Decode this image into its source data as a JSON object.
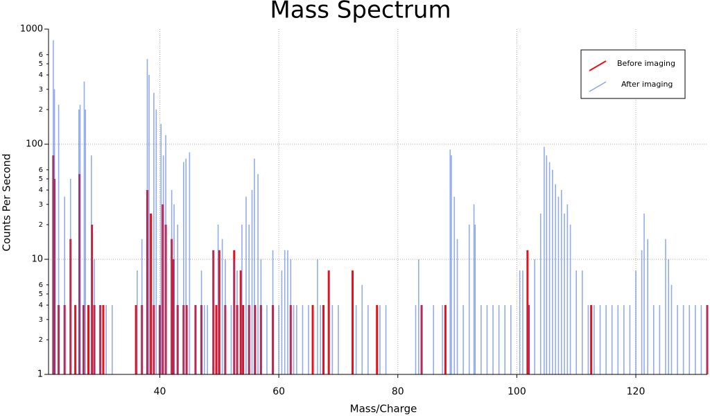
{
  "chart_data": {
    "type": "spectrum",
    "title": "Mass Spectrum",
    "x_label": "Mass/Charge",
    "y_label": "Counts Per Second",
    "log_y": true,
    "grid": true,
    "legend": "upper right",
    "xlim": [
      21.3,
      132
    ],
    "ylim": [
      1,
      1000
    ],
    "xticks": [
      40,
      60,
      80,
      100,
      120
    ],
    "yticks": [
      1,
      2,
      3,
      4,
      5,
      6,
      10,
      {
        "value": 20,
        "label": "2"
      },
      {
        "value": 30,
        "label": "3"
      },
      {
        "value": 40,
        "label": "4"
      },
      {
        "value": 50,
        "label": "5"
      },
      {
        "value": 60,
        "label": "6"
      },
      100,
      {
        "value": 200,
        "label": "2"
      },
      {
        "value": 300,
        "label": "3"
      },
      {
        "value": 400,
        "label": "4"
      },
      {
        "value": 500,
        "label": "5"
      },
      {
        "value": 600,
        "label": "6"
      },
      1000
    ],
    "series": [
      {
        "name": "Before imaging",
        "color": "#e8101a",
        "x": [
          22.1,
          22.3,
          23,
          24,
          25,
          25.8,
          26.5,
          27.2,
          28,
          28.6,
          29,
          30,
          30.5,
          36,
          37,
          37.9,
          38.5,
          39,
          40,
          40.5,
          41,
          42,
          42.3,
          43,
          44,
          44.5,
          46,
          47,
          49,
          49.5,
          50,
          51,
          52.5,
          53,
          53.6,
          54,
          55,
          56,
          57,
          59,
          62,
          65.7,
          67.5,
          68.4,
          72.4,
          76.5,
          84,
          88,
          101.8,
          102,
          112.5,
          132
        ],
        "values": [
          80,
          50,
          4,
          4,
          15,
          4,
          55,
          4,
          4,
          20,
          4,
          4,
          4,
          4,
          4,
          40,
          25,
          4,
          4,
          30,
          20,
          15,
          10,
          4,
          4,
          4,
          4,
          4,
          12,
          4,
          12,
          4,
          12,
          4,
          8,
          4,
          4,
          4,
          4,
          4,
          4,
          4,
          4,
          8,
          8,
          4,
          4,
          4,
          12,
          4,
          4,
          4
        ]
      },
      {
        "name": "After imaging",
        "color": "#3a66e0",
        "x": [
          22.1,
          22.3,
          23,
          24,
          25,
          26.4,
          26.6,
          27.3,
          27.5,
          28.5,
          29,
          30,
          31,
          32,
          36.2,
          37,
          37.9,
          38.2,
          39,
          39.4,
          40,
          40.2,
          40.6,
          41,
          42,
          42.4,
          43,
          44,
          44.4,
          45,
          46,
          47,
          47.5,
          48,
          49,
          49.8,
          50.5,
          51,
          52,
          52.5,
          53,
          53.8,
          54.5,
          55,
          55.5,
          55.9,
          56.5,
          57,
          58,
          59,
          60,
          60.5,
          61,
          61.5,
          62,
          62.5,
          63,
          64,
          65,
          66.5,
          67,
          69,
          70,
          73,
          74,
          75,
          77,
          78,
          83,
          83.5,
          84,
          86,
          87.5,
          88.8,
          89,
          89.5,
          90,
          91,
          92,
          92.8,
          93,
          94,
          95,
          96,
          97,
          98,
          99,
          100.5,
          101,
          102,
          103,
          104,
          104.6,
          105,
          105.5,
          106,
          106.5,
          107,
          107.5,
          108,
          108.5,
          109,
          110,
          111,
          112,
          113,
          114,
          115,
          116,
          117,
          118,
          119,
          120,
          121,
          121.4,
          122,
          123,
          124,
          125,
          125.5,
          126,
          127,
          128,
          129,
          130,
          131,
          132
        ],
        "values": [
          800,
          300,
          220,
          35,
          50,
          200,
          220,
          350,
          200,
          80,
          10,
          4,
          4,
          4,
          8,
          15,
          550,
          400,
          280,
          200,
          4,
          150,
          80,
          120,
          40,
          30,
          20,
          70,
          75,
          85,
          4,
          8,
          4,
          4,
          12,
          20,
          15,
          10,
          4,
          10,
          8,
          20,
          35,
          20,
          40,
          75,
          55,
          10,
          4,
          12,
          4,
          8,
          12,
          12,
          10,
          4,
          4,
          4,
          4,
          10,
          4,
          4,
          4,
          4,
          6,
          4,
          4,
          4,
          4,
          10,
          4,
          4,
          4,
          90,
          80,
          35,
          15,
          4,
          20,
          30,
          20,
          4,
          4,
          4,
          4,
          4,
          4,
          8,
          8,
          4,
          10,
          25,
          95,
          80,
          70,
          60,
          45,
          35,
          40,
          25,
          30,
          20,
          8,
          8,
          4,
          4,
          4,
          4,
          4,
          4,
          4,
          4,
          8,
          12,
          25,
          15,
          4,
          4,
          15,
          10,
          6,
          4,
          4,
          4,
          4,
          4,
          4
        ]
      }
    ]
  }
}
